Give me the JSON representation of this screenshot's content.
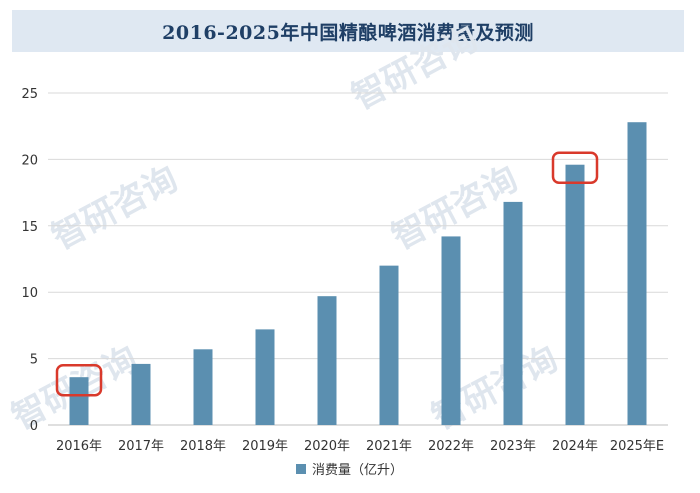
{
  "chart_data": {
    "type": "bar",
    "title": "2016-2025年中国精酿啤酒消费量及预测",
    "categories": [
      "2016年",
      "2017年",
      "2018年",
      "2019年",
      "2020年",
      "2021年",
      "2022年",
      "2023年",
      "2024年",
      "2025年E"
    ],
    "series": [
      {
        "name": "消费量（亿升）",
        "values": [
          3.6,
          4.6,
          5.7,
          7.2,
          9.7,
          12.0,
          14.2,
          16.8,
          19.6,
          22.8
        ]
      }
    ],
    "ylim": [
      0,
      25
    ],
    "yticks": [
      0,
      5,
      10,
      15,
      20,
      25
    ],
    "grid": true,
    "legend_position": "bottom",
    "highlighted_categories": [
      "2016年",
      "2024年"
    ],
    "colors": {
      "bar": "#5b8fb0",
      "highlight": "#d9392b",
      "grid": "#d9d9d9",
      "axis": "#bfbfbf"
    }
  },
  "watermark": {
    "text": "智研咨询"
  }
}
